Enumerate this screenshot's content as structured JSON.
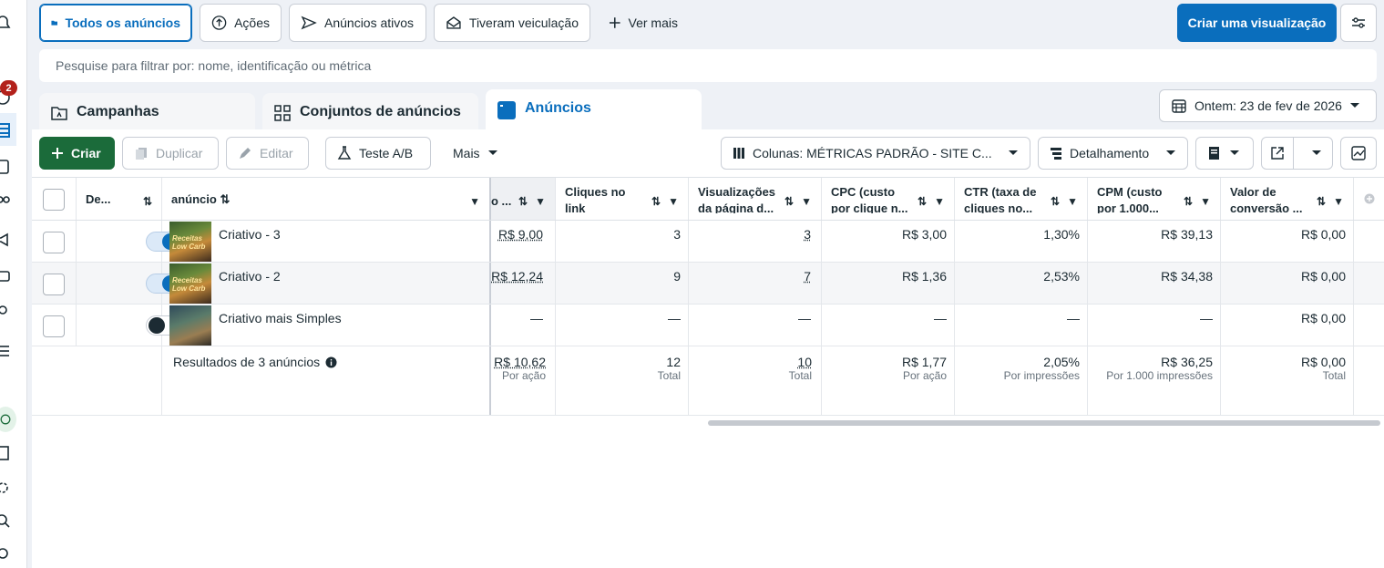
{
  "top_filters": {
    "all_ads": "Todos os anúncios",
    "actions": "Ações",
    "active_ads": "Anúncios ativos",
    "delivered": "Tiveram veiculação",
    "see_more": "Ver mais",
    "create_view": "Criar uma visualização"
  },
  "search": {
    "placeholder": "Pesquise para filtrar por: nome, identificação ou métrica"
  },
  "tabs": {
    "campaigns": "Campanhas",
    "adsets": "Conjuntos de anúncios",
    "ads": "Anúncios"
  },
  "date_picker": "Ontem: 23 de fev de 2026",
  "notification_count": "2",
  "toolbar": {
    "create": "Criar",
    "duplicate": "Duplicar",
    "edit": "Editar",
    "ab_test": "Teste A/B",
    "more": "Mais",
    "columns": "Colunas: MÉTRICAS PADRÃO - SITE C...",
    "breakdown": "Detalhamento"
  },
  "columns": {
    "delivery": "De...",
    "ad": "anúncio",
    "cost_partial": "o ...",
    "link_clicks": [
      "Cliques no",
      "link"
    ],
    "page_views": [
      "Visualizações",
      "da página d..."
    ],
    "cpc": [
      "CPC (custo",
      "por clique n..."
    ],
    "ctr": [
      "CTR (taxa de",
      "cliques no..."
    ],
    "cpm": [
      "CPM (custo",
      "por 1.000..."
    ],
    "conv_value": [
      "Valor de",
      "conversão ..."
    ]
  },
  "rows": [
    {
      "name": "Criativo - 3",
      "on": true,
      "cost": "R$ 9,00",
      "clicks": "3",
      "views": "3",
      "cpc": "R$ 3,00",
      "ctr": "1,30%",
      "cpm": "R$ 39,13",
      "value": "R$ 0,00"
    },
    {
      "name": "Criativo - 2",
      "on": true,
      "cost": "R$ 12,24",
      "clicks": "9",
      "views": "7",
      "cpc": "R$ 1,36",
      "ctr": "2,53%",
      "cpm": "R$ 34,38",
      "value": "R$ 0,00"
    },
    {
      "name": "Criativo mais Simples",
      "on": false,
      "cost": "—",
      "clicks": "—",
      "views": "—",
      "cpc": "—",
      "ctr": "—",
      "cpm": "—",
      "value": "R$ 0,00"
    }
  ],
  "thumb_text": "Receitas Low Carb",
  "totals": {
    "label": "Resultados de 3 anúncios",
    "cost": "R$ 10,62",
    "cost_sub": "Por ação",
    "clicks": "12",
    "clicks_sub": "Total",
    "views": "10",
    "views_sub": "Total",
    "cpc": "R$ 1,77",
    "cpc_sub": "Por ação",
    "ctr": "2,05%",
    "ctr_sub": "Por impressões",
    "cpm": "R$ 36,25",
    "cpm_sub": "Por 1.000 impressões",
    "value": "R$ 0,00",
    "value_sub": "Total"
  }
}
